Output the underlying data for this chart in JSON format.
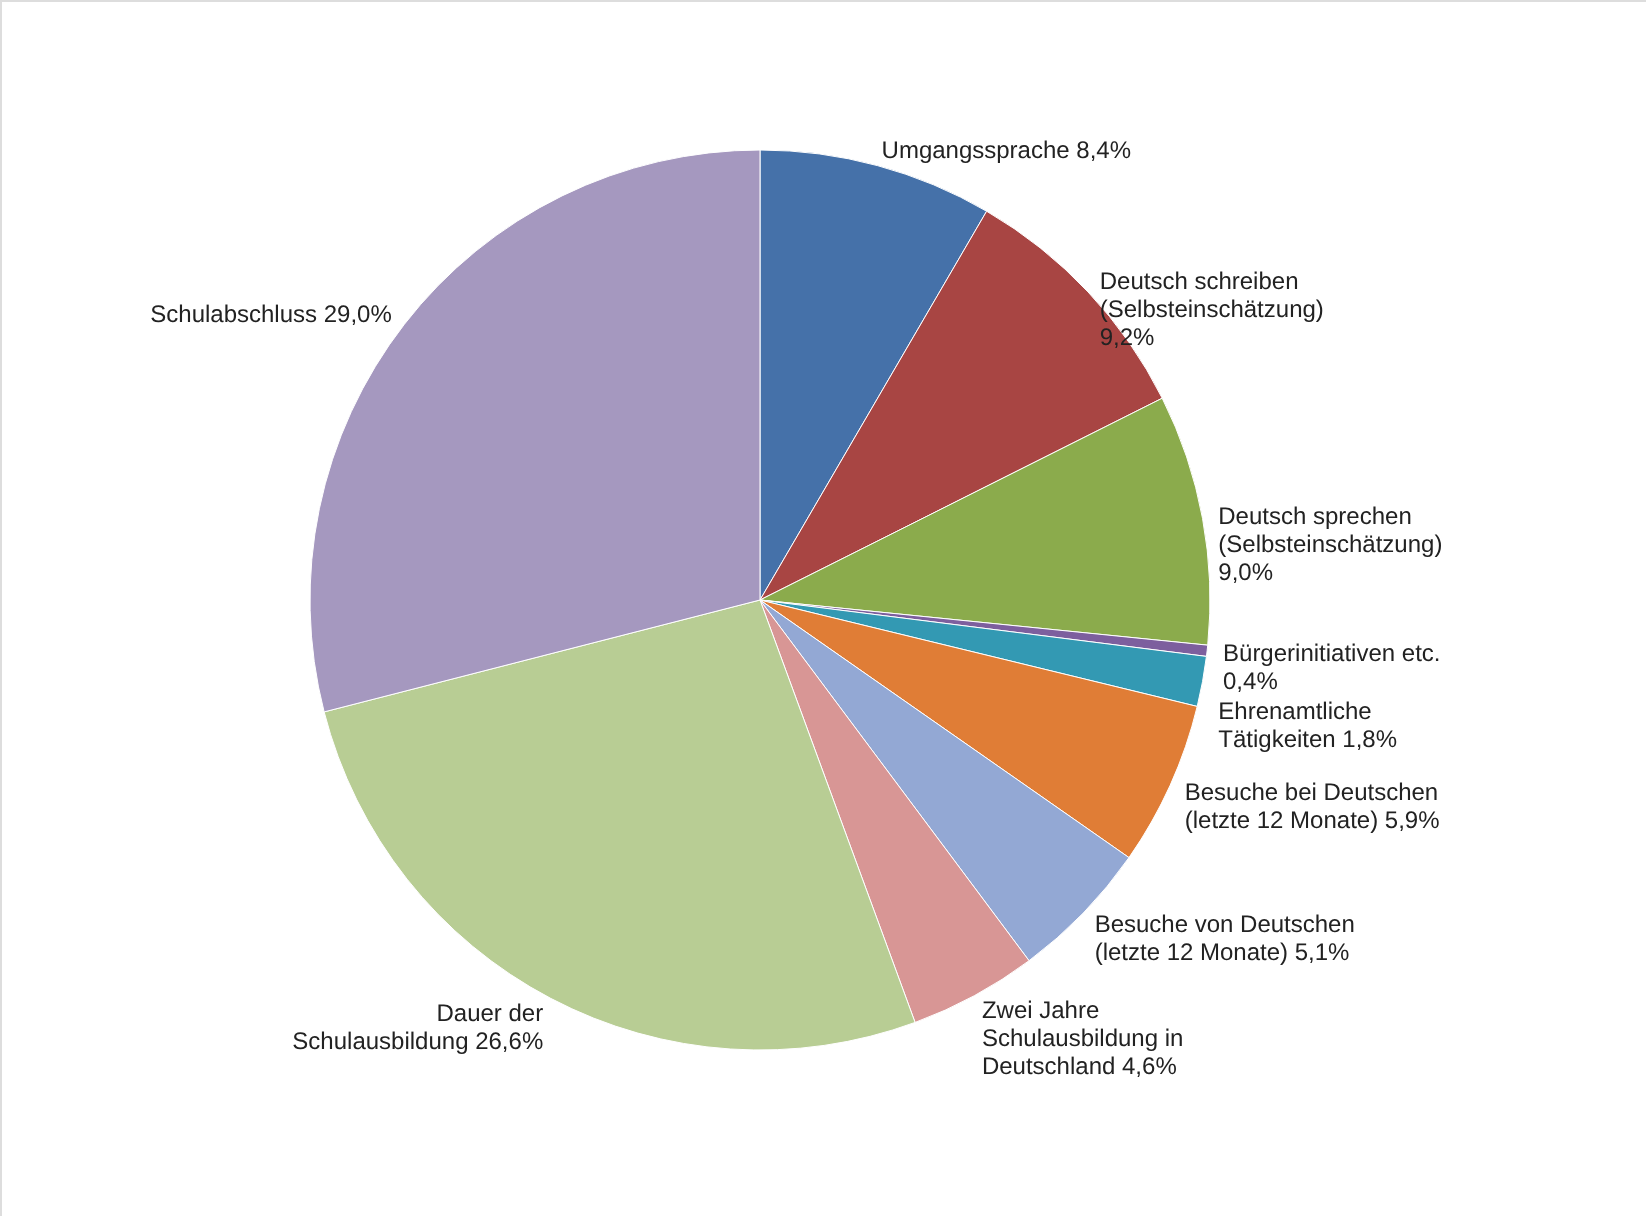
{
  "chart_data": {
    "type": "pie",
    "categories": [
      "Umgangssprache",
      "Deutsch schreiben (Selbsteinschätzung)",
      "Deutsch sprechen (Selbsteinschätzung)",
      "Bürgerinitiativen etc.",
      "Ehrenamtliche Tätigkeiten",
      "Besuche bei Deutschen (letzte 12 Monate)",
      "Besuche von Deutschen (letzte 12 Monate)",
      "Zwei Jahre Schulausbildung in Deutschland",
      "Dauer der Schulausbildung",
      "Schulabschluss"
    ],
    "values": [
      8.4,
      9.2,
      9.0,
      0.4,
      1.8,
      5.9,
      5.1,
      4.6,
      26.6,
      29.0
    ],
    "value_labels": [
      "8,4%",
      "9,2%",
      "9,0%",
      "0,4%",
      "1,8%",
      "5,9%",
      "5,1%",
      "4,6%",
      "26,6%",
      "29,0%"
    ],
    "colors": [
      "#4571a9",
      "#a84543",
      "#8bab4c",
      "#7d5f9e",
      "#3399b3",
      "#e07d36",
      "#93a8d4",
      "#d89695",
      "#b8cd94",
      "#a598bf"
    ]
  }
}
